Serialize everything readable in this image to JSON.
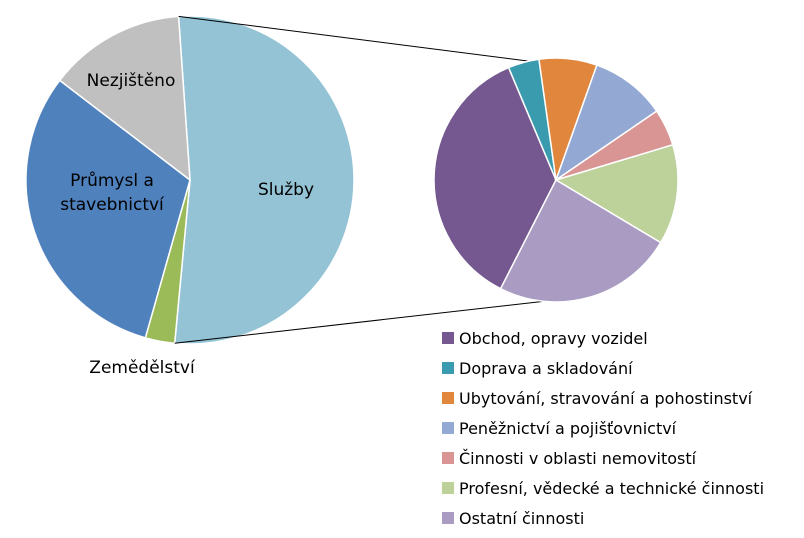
{
  "chart_data": {
    "type": "bar-of-pie",
    "main_pie": {
      "slices": [
        {
          "label": "Služby",
          "value": 52.6,
          "color": "#93C3D5"
        },
        {
          "label": "Zemědělství",
          "value": 2.9,
          "color": "#9BBB59"
        },
        {
          "label": "Průmysl a stavebnictví",
          "label_lines": [
            "Průmysl a",
            "stavebnictví"
          ],
          "value": 31.0,
          "color": "#4F81BD"
        },
        {
          "label": "Nezjištěno",
          "value": 13.5,
          "color": "#C0C0C0"
        }
      ]
    },
    "secondary_pie": {
      "slices": [
        {
          "label": "Obchod, opravy vozidel",
          "value": 32.5,
          "color": "#74588F"
        },
        {
          "label": "Doprava a skladování",
          "value": 3.7,
          "color": "#3A9BAE"
        },
        {
          "label": "Ubytování, stravování a pohostinství",
          "value": 6.9,
          "color": "#E0863D"
        },
        {
          "label": "Peněžnictví a pojišťovnictví",
          "value": 9.0,
          "color": "#93A9D3"
        },
        {
          "label": "Činnosti v oblasti nemovitostí",
          "value": 4.4,
          "color": "#D99594"
        },
        {
          "label": "Profesní, vědecké a technické činnosti",
          "value": 11.9,
          "color": "#BDD19B"
        },
        {
          "label": "Ostatní činnosti",
          "value": 21.5,
          "color": "#A99BC1"
        }
      ]
    },
    "legend": {
      "position": "bottom-right"
    }
  }
}
